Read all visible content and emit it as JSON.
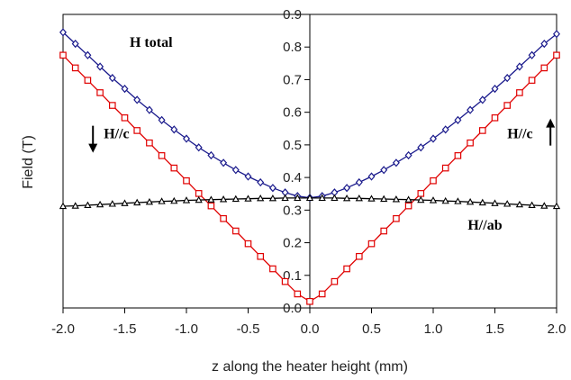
{
  "chart_data": {
    "type": "line",
    "xlabel": "z along the heater height (mm)",
    "ylabel": "Field (T)",
    "xlim": [
      -2.0,
      2.0
    ],
    "ylim": [
      0.0,
      0.9
    ],
    "x_ticks": [
      "-2.0",
      "-1.5",
      "-1.0",
      "-0.5",
      "0.0",
      "0.5",
      "1.0",
      "1.5",
      "2.0"
    ],
    "y_ticks": [
      "0.0",
      "0.1",
      "0.2",
      "0.3",
      "0.4",
      "0.5",
      "0.6",
      "0.7",
      "0.8",
      "0.9"
    ],
    "grid": false,
    "annotations": [
      {
        "text": "H total",
        "x": -1.46,
        "y": 0.8
      },
      {
        "text": "H//c",
        "x": -1.67,
        "y": 0.52,
        "arrow": "down"
      },
      {
        "text": "H//c",
        "x": 1.6,
        "y": 0.52,
        "arrow": "up"
      },
      {
        "text": "H//ab",
        "x": 1.28,
        "y": 0.24
      }
    ],
    "x": [
      -2.0,
      -1.9,
      -1.8,
      -1.7,
      -1.6,
      -1.5,
      -1.4,
      -1.3,
      -1.2,
      -1.1,
      -1.0,
      -0.9,
      -0.8,
      -0.7,
      -0.6,
      -0.5,
      -0.4,
      -0.3,
      -0.2,
      -0.1,
      0.0,
      0.1,
      0.2,
      0.3,
      0.4,
      0.5,
      0.6,
      0.7,
      0.8,
      0.9,
      1.0,
      1.1,
      1.2,
      1.3,
      1.4,
      1.5,
      1.6,
      1.7,
      1.8,
      1.9,
      2.0
    ],
    "series": [
      {
        "name": "H total",
        "color": "#1a1a8c",
        "marker": "diamond",
        "values": [
          0.845,
          0.81,
          0.775,
          0.74,
          0.705,
          0.672,
          0.638,
          0.607,
          0.576,
          0.547,
          0.519,
          0.492,
          0.468,
          0.445,
          0.423,
          0.403,
          0.385,
          0.368,
          0.354,
          0.343,
          0.338,
          0.343,
          0.354,
          0.368,
          0.385,
          0.403,
          0.423,
          0.445,
          0.468,
          0.492,
          0.519,
          0.547,
          0.576,
          0.607,
          0.638,
          0.672,
          0.705,
          0.74,
          0.775,
          0.81,
          0.84
        ]
      },
      {
        "name": "H//c",
        "color": "#e00000",
        "marker": "square",
        "values": [
          0.775,
          0.736,
          0.698,
          0.66,
          0.621,
          0.583,
          0.544,
          0.506,
          0.467,
          0.429,
          0.39,
          0.351,
          0.313,
          0.274,
          0.236,
          0.197,
          0.158,
          0.12,
          0.081,
          0.043,
          0.02,
          0.043,
          0.081,
          0.12,
          0.158,
          0.197,
          0.236,
          0.274,
          0.313,
          0.351,
          0.39,
          0.429,
          0.467,
          0.506,
          0.544,
          0.583,
          0.621,
          0.66,
          0.698,
          0.736,
          0.775
        ]
      },
      {
        "name": "H//ab",
        "color": "#000000",
        "marker": "triangle",
        "values": [
          0.312,
          0.313,
          0.315,
          0.317,
          0.319,
          0.321,
          0.323,
          0.325,
          0.327,
          0.328,
          0.33,
          0.331,
          0.332,
          0.333,
          0.334,
          0.335,
          0.336,
          0.336,
          0.337,
          0.337,
          0.337,
          0.337,
          0.337,
          0.336,
          0.336,
          0.335,
          0.334,
          0.333,
          0.332,
          0.331,
          0.33,
          0.328,
          0.327,
          0.325,
          0.323,
          0.321,
          0.319,
          0.317,
          0.315,
          0.313,
          0.312
        ]
      }
    ]
  }
}
